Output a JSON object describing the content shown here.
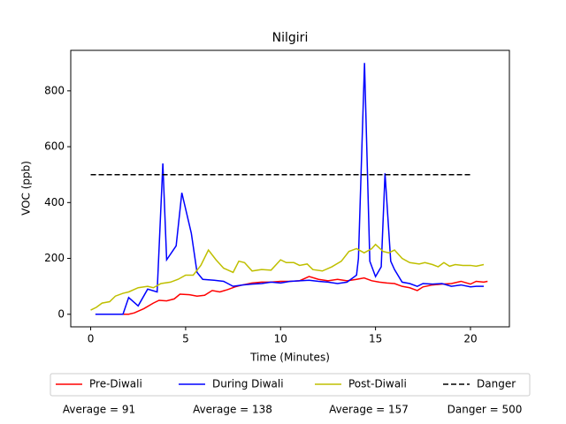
{
  "chart_data": {
    "type": "line",
    "title": "Nilgiri",
    "x_label": "Time (Minutes)",
    "y_label": "VOC (ppb)",
    "xlim": [
      -1.05,
      22.05
    ],
    "ylim": [
      -45,
      945
    ],
    "xticks": [
      0,
      5,
      10,
      15,
      20
    ],
    "yticks": [
      0,
      200,
      400,
      600,
      800
    ],
    "grid": false,
    "legend_position": "bottom",
    "series": [
      {
        "name": "Pre-Diwali",
        "color": "#ff0000",
        "linestyle": "solid",
        "x": [
          0.25,
          1,
          2,
          2.3,
          2.8,
          3.3,
          3.6,
          4,
          4.4,
          4.7,
          5.2,
          5.6,
          6,
          6.4,
          6.8,
          7.2,
          7.6,
          8,
          8.5,
          9,
          9.5,
          10,
          10.5,
          11,
          11.5,
          12,
          12.5,
          13,
          13.5,
          14,
          14.4,
          14.8,
          15.2,
          15.6,
          16,
          16.4,
          16.8,
          17.2,
          17.5,
          18,
          18.5,
          19,
          19.5,
          20,
          20.3,
          20.7,
          20.9
        ],
        "values": [
          0,
          0,
          0,
          5,
          20,
          40,
          50,
          48,
          55,
          72,
          70,
          65,
          68,
          85,
          80,
          88,
          98,
          105,
          112,
          115,
          115,
          118,
          118,
          120,
          135,
          125,
          120,
          125,
          120,
          125,
          130,
          120,
          115,
          112,
          110,
          100,
          95,
          85,
          98,
          105,
          108,
          110,
          118,
          108,
          118,
          115,
          118
        ]
      },
      {
        "name": "During Diwali",
        "color": "#0000ff",
        "linestyle": "solid",
        "x": [
          0.25,
          1.7,
          2,
          2.5,
          3,
          3.5,
          3.8,
          4,
          4.5,
          4.8,
          5.3,
          5.6,
          5.9,
          6.5,
          7,
          7.5,
          8,
          8.5,
          9,
          9.5,
          10,
          10.5,
          11,
          11.5,
          12,
          12.5,
          13,
          13.5,
          14,
          14.1,
          14.42,
          14.7,
          15,
          15.3,
          15.5,
          15.8,
          16,
          16.4,
          16.8,
          17.2,
          17.5,
          18,
          18.5,
          19,
          19.5,
          20,
          20.3,
          20.7
        ],
        "values": [
          0,
          0,
          60,
          30,
          90,
          80,
          540,
          195,
          245,
          435,
          290,
          150,
          125,
          122,
          118,
          100,
          105,
          108,
          110,
          115,
          112,
          118,
          120,
          122,
          118,
          115,
          110,
          115,
          140,
          200,
          900,
          190,
          135,
          170,
          505,
          190,
          160,
          115,
          110,
          100,
          110,
          108,
          110,
          100,
          105,
          98,
          100,
          100
        ]
      },
      {
        "name": "Post-Diwali",
        "color": "#bfbf00",
        "linestyle": "solid",
        "x": [
          0,
          0.3,
          0.6,
          1,
          1.3,
          1.7,
          2,
          2.5,
          3,
          3.3,
          3.7,
          4.2,
          4.6,
          5,
          5.4,
          5.8,
          6.2,
          6.6,
          7,
          7.5,
          7.8,
          8.1,
          8.5,
          9,
          9.5,
          10,
          10.3,
          10.7,
          11,
          11.4,
          11.7,
          12.2,
          12.7,
          13.2,
          13.6,
          14,
          14.4,
          14.8,
          15,
          15.4,
          15.7,
          16,
          16.4,
          16.8,
          17.3,
          17.6,
          18,
          18.3,
          18.6,
          18.9,
          19.2,
          19.6,
          20,
          20.3,
          20.7
        ],
        "values": [
          15,
          25,
          40,
          45,
          65,
          75,
          80,
          95,
          100,
          95,
          110,
          115,
          125,
          140,
          140,
          175,
          230,
          195,
          165,
          150,
          190,
          185,
          155,
          160,
          158,
          195,
          185,
          185,
          175,
          180,
          160,
          155,
          170,
          190,
          225,
          235,
          220,
          235,
          250,
          225,
          220,
          230,
          200,
          185,
          180,
          185,
          178,
          170,
          185,
          172,
          178,
          175,
          175,
          172,
          178
        ]
      },
      {
        "name": "Danger",
        "color": "#000000",
        "linestyle": "dashed",
        "x": [
          0,
          20
        ],
        "values": [
          500,
          500
        ]
      }
    ],
    "annotations": [
      "Average = 91",
      "Average = 138",
      "Average = 157",
      "Danger = 500"
    ]
  }
}
